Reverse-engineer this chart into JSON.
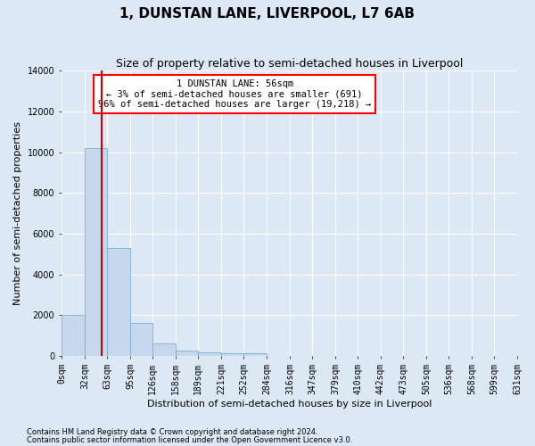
{
  "title": "1, DUNSTAN LANE, LIVERPOOL, L7 6AB",
  "subtitle": "Size of property relative to semi-detached houses in Liverpool",
  "xlabel": "Distribution of semi-detached houses by size in Liverpool",
  "ylabel": "Number of semi-detached properties",
  "footnote1": "Contains HM Land Registry data © Crown copyright and database right 2024.",
  "footnote2": "Contains public sector information licensed under the Open Government Licence v3.0.",
  "annotation_line1": "1 DUNSTAN LANE: 56sqm",
  "annotation_line2": "← 3% of semi-detached houses are smaller (691)",
  "annotation_line3": "96% of semi-detached houses are larger (19,218) →",
  "property_sqm": 56,
  "bins": [
    0,
    32,
    63,
    95,
    126,
    158,
    189,
    221,
    252,
    284,
    316,
    347,
    379,
    410,
    442,
    473,
    505,
    536,
    568,
    599,
    631
  ],
  "bin_labels": [
    "0sqm",
    "32sqm",
    "63sqm",
    "95sqm",
    "126sqm",
    "158sqm",
    "189sqm",
    "221sqm",
    "252sqm",
    "284sqm",
    "316sqm",
    "347sqm",
    "379sqm",
    "410sqm",
    "442sqm",
    "473sqm",
    "505sqm",
    "536sqm",
    "568sqm",
    "599sqm",
    "631sqm"
  ],
  "counts": [
    2000,
    10200,
    5300,
    1600,
    620,
    280,
    170,
    130,
    120,
    0,
    0,
    0,
    0,
    0,
    0,
    0,
    0,
    0,
    0,
    0
  ],
  "bar_color": "#c5d8ee",
  "bar_edge_color": "#7bafd4",
  "vline_color": "#cc0000",
  "ylim": [
    0,
    14000
  ],
  "yticks": [
    0,
    2000,
    4000,
    6000,
    8000,
    10000,
    12000,
    14000
  ],
  "background_color": "#dde8f5",
  "grid_color": "#ffffff",
  "title_fontsize": 11,
  "subtitle_fontsize": 9,
  "axis_label_fontsize": 8,
  "tick_fontsize": 7,
  "annotation_fontsize": 7.5,
  "footnote_fontsize": 6
}
